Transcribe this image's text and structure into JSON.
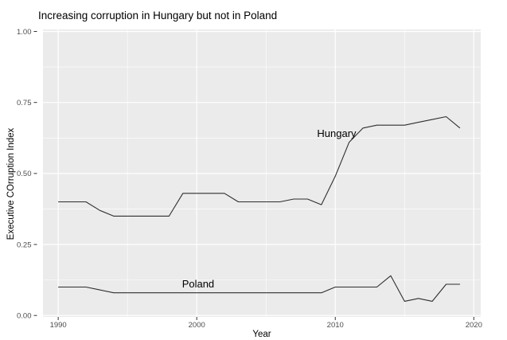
{
  "figure": {
    "title": "Increasing corruption in Hungary but not in Poland",
    "x_axis_title": "Year",
    "y_axis_title": "Executive COrruption Index"
  },
  "chart_data": {
    "type": "line",
    "title": "Increasing corruption in Hungary but not in Poland",
    "xlabel": "Year",
    "ylabel": "Executive COrruption Index",
    "x_domain": [
      1988.9,
      2020.5
    ],
    "y_domain": [
      -0.005,
      1.007
    ],
    "x_major_ticks": [
      1990,
      2000,
      2010,
      2020
    ],
    "x_tick_labels": [
      "1990",
      "2000",
      "2010",
      "2020"
    ],
    "x_minor_ticks": [
      1995,
      2005,
      2015
    ],
    "y_major_ticks": [
      0,
      0.25,
      0.5,
      0.75,
      1
    ],
    "y_tick_labels": [
      "0.00",
      "0.25",
      "0.50",
      "0.75",
      "1.00"
    ],
    "y_minor_ticks": [
      0.125,
      0.375,
      0.625,
      0.875
    ],
    "grid": true,
    "legend_position": "none",
    "panel_background": "#ebebeb",
    "grid_color": "#ffffff",
    "line_color": "#2e2e2e",
    "axis_text_color": "#4d4d4d",
    "tick_mark_color": "#333333",
    "x": [
      1990,
      1991,
      1992,
      1993,
      1994,
      1995,
      1996,
      1997,
      1998,
      1999,
      2000,
      2001,
      2002,
      2003,
      2004,
      2005,
      2006,
      2007,
      2008,
      2009,
      2010,
      2011,
      2012,
      2013,
      2014,
      2015,
      2016,
      2017,
      2018,
      2019
    ],
    "series": [
      {
        "name": "Hungary",
        "values": [
          0.4,
          0.4,
          0.4,
          0.37,
          0.35,
          0.35,
          0.35,
          0.35,
          0.35,
          0.43,
          0.43,
          0.43,
          0.43,
          0.4,
          0.4,
          0.4,
          0.4,
          0.41,
          0.41,
          0.39,
          0.49,
          0.61,
          0.66,
          0.67,
          0.67,
          0.67,
          0.68,
          0.69,
          0.7,
          0.66
        ]
      },
      {
        "name": "Poland",
        "values": [
          0.1,
          0.1,
          0.1,
          0.09,
          0.08,
          0.08,
          0.08,
          0.08,
          0.08,
          0.08,
          0.08,
          0.08,
          0.08,
          0.08,
          0.08,
          0.08,
          0.08,
          0.08,
          0.08,
          0.08,
          0.1,
          0.1,
          0.1,
          0.1,
          0.14,
          0.05,
          0.06,
          0.05,
          0.11,
          0.11
        ]
      }
    ],
    "annotations": [
      {
        "label": "Hungary",
        "x": 2010.1,
        "y": 0.642
      },
      {
        "label": "Poland",
        "x": 2000.1,
        "y": 0.112
      }
    ]
  }
}
